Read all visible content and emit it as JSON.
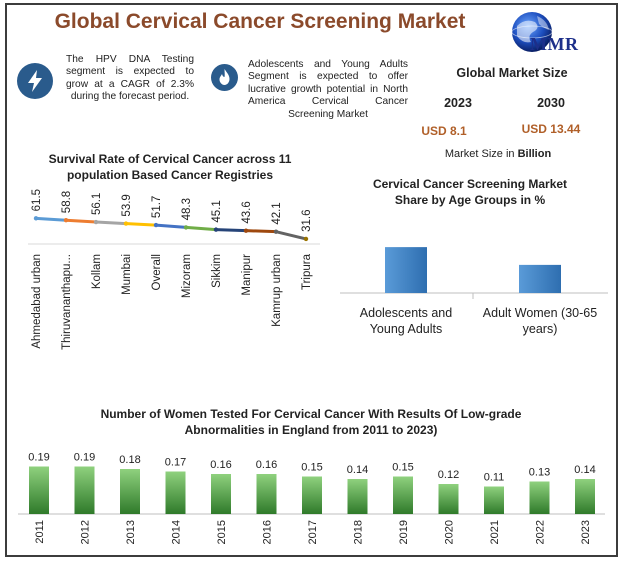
{
  "header": {
    "title": "Global Cervical Cancer Screening Market",
    "logo_text": "MMR"
  },
  "facts": [
    {
      "icon": "lightning-bolt-icon",
      "text": "The HPV DNA Testing segment is expected to grow at a CAGR of 2.3% during the forecast period."
    },
    {
      "icon": "flame-icon",
      "text": "Adolescents and Young Adults Segment is expected to offer lucrative growth potential in North America Cervical Cancer Screening Market"
    }
  ],
  "market_size": {
    "title": "Global Market Size",
    "year_1": "2023",
    "year_2": "2030",
    "value_1": "USD 8.1",
    "value_2": "USD 13.44",
    "note_prefix": "Market Size in ",
    "note_unit": "Billion"
  },
  "colors": {
    "title": "#8b4a2b",
    "value": "#b05f28",
    "badge": "#2a5b8c",
    "bar_blue": "#3a7fc4",
    "bar_green_top": "#8fd17e",
    "bar_green_bottom": "#2f7a2a"
  },
  "chart_data": [
    {
      "type": "line",
      "title": "Survival Rate of Cervical Cancer across 11 population Based Cancer Registries",
      "categories": [
        "Ahmedabad urban",
        "Thiruvananthapu...",
        "Kollam",
        "Mumbai",
        "Overall",
        "Mizoram",
        "Sikkim",
        "Manipur",
        "Kamrup urban",
        "Tripura"
      ],
      "values": [
        61.5,
        58.8,
        56.1,
        53.9,
        51.7,
        48.3,
        45.1,
        43.6,
        42.1,
        31.6
      ],
      "value_labels": [
        "61.5",
        "58.8",
        "56.1",
        "53.9",
        "51.7",
        "48.3",
        "45.1",
        "43.6",
        "42.1",
        "31.6"
      ],
      "segment_colors": [
        "#5b9bd5",
        "#ed7d31",
        "#a5a5a5",
        "#ffc000",
        "#4472c4",
        "#70ad47",
        "#264478",
        "#9e480e",
        "#636363",
        "#997300"
      ]
    },
    {
      "type": "bar",
      "title": "Cervical Cancer Screening Market Share by Age Groups in %",
      "categories": [
        "Adolescents and Young Adults",
        "Adult Women (30-65 years)"
      ],
      "category_lines": [
        [
          "Adolescents and",
          "Young Adults"
        ],
        [
          "Adult Women (30-65",
          "years)"
        ]
      ],
      "values": [
        62,
        38
      ],
      "ylim": [
        0,
        100
      ]
    },
    {
      "type": "bar",
      "title": "Number of Women Tested For Cervical Cancer With Results Of Low-grade Abnormalities in England from 2011 to 2023)",
      "title_lines": [
        "Number of Women Tested For Cervical Cancer With Results Of Low-grade",
        "Abnormalities in England from 2011 to 2023)"
      ],
      "categories": [
        "2011",
        "2012",
        "2013",
        "2014",
        "2015",
        "2016",
        "2017",
        "2018",
        "2019",
        "2020",
        "2021",
        "2022",
        "2023"
      ],
      "values": [
        0.19,
        0.19,
        0.18,
        0.17,
        0.16,
        0.16,
        0.15,
        0.14,
        0.15,
        0.12,
        0.11,
        0.13,
        0.14
      ],
      "value_labels": [
        "0.19",
        "0.19",
        "0.18",
        "0.17",
        "0.16",
        "0.16",
        "0.15",
        "0.14",
        "0.15",
        "0.12",
        "0.11",
        "0.13",
        "0.14"
      ],
      "ylim": [
        0,
        0.2
      ]
    }
  ]
}
